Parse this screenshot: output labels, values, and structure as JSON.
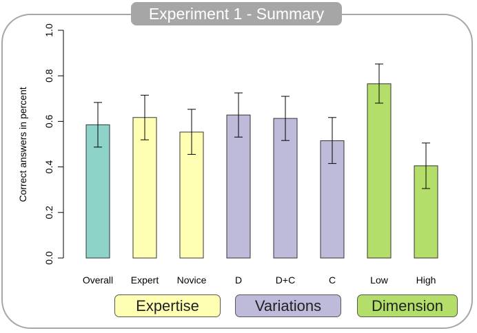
{
  "title": "Experiment 1 - Summary",
  "chart_data": {
    "type": "bar",
    "categories": [
      "Overall",
      "Expert",
      "Novice",
      "D",
      "D+C",
      "C",
      "Low",
      "High"
    ],
    "values": [
      0.585,
      0.617,
      0.553,
      0.628,
      0.613,
      0.515,
      0.765,
      0.405
    ],
    "error_low": [
      0.487,
      0.519,
      0.455,
      0.531,
      0.516,
      0.415,
      0.68,
      0.305
    ],
    "error_high": [
      0.683,
      0.715,
      0.653,
      0.725,
      0.71,
      0.617,
      0.852,
      0.505
    ],
    "colors": [
      "#8dd3c7",
      "#ffffb3",
      "#ffffb3",
      "#bebada",
      "#bebada",
      "#bebada",
      "#b3de69",
      "#b3de69"
    ],
    "ylabel": "Correct answers in percent",
    "xlabel": "",
    "ylim": [
      0,
      1.0
    ],
    "yticks": [
      "0.0",
      "0.2",
      "0.4",
      "0.6",
      "0.8",
      "1.0"
    ],
    "grid": false
  },
  "groups": [
    {
      "label": "Expertise",
      "color": "#ffffb3"
    },
    {
      "label": "Variations",
      "color": "#bebada"
    },
    {
      "label": "Dimension",
      "color": "#b3de69"
    }
  ]
}
